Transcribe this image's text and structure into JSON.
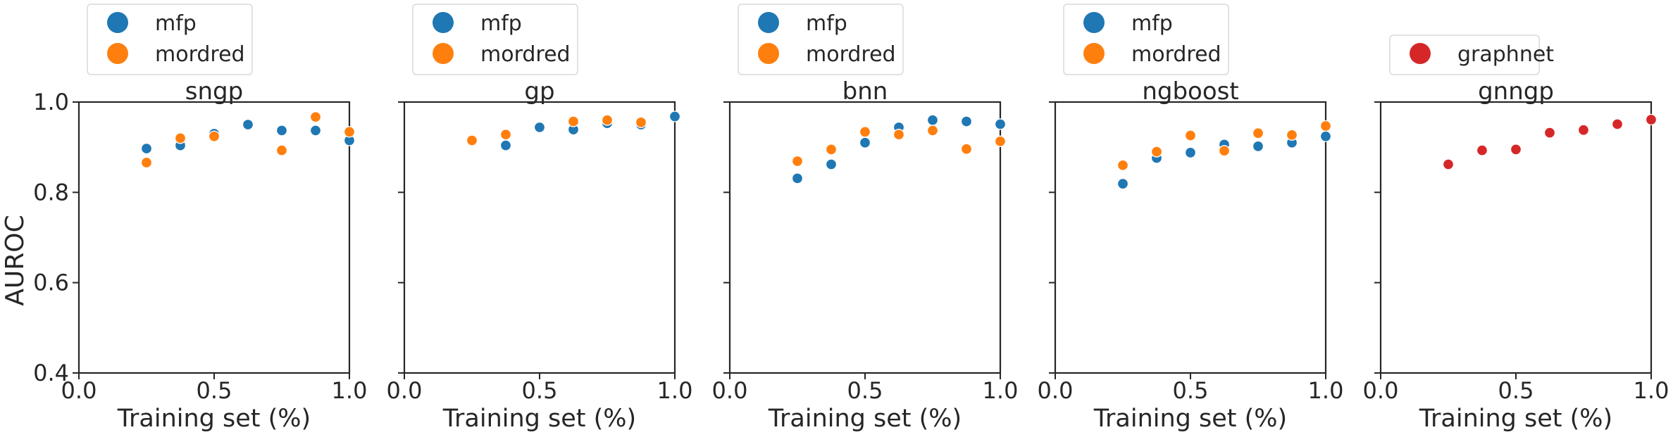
{
  "figure": {
    "ylabel": "AUROC"
  },
  "colors": {
    "mfp": "#1f77b4",
    "mordred": "#ff7f0e",
    "graphnet": "#d62728",
    "axis": "#262626"
  },
  "chart_data": [
    {
      "type": "scatter",
      "title": "sngp",
      "xlabel": "Training set (%)",
      "ylabel": "AUROC",
      "xlim": [
        0.0,
        1.0
      ],
      "ylim": [
        0.4,
        1.0
      ],
      "xticks": [
        "0.0",
        "0.5",
        "1.0"
      ],
      "yticks": [
        "0.4",
        "0.6",
        "0.8",
        "1.0"
      ],
      "grid": false,
      "legend": "above",
      "series": [
        {
          "name": "mfp",
          "color": "#1f77b4",
          "x": [
            0.25,
            0.375,
            0.5,
            0.625,
            0.75,
            0.875,
            1.0
          ],
          "y": [
            0.897,
            0.904,
            0.93,
            0.95,
            0.937,
            0.937,
            0.915
          ]
        },
        {
          "name": "mordred",
          "color": "#ff7f0e",
          "x": [
            0.25,
            0.375,
            0.5,
            0.75,
            0.875,
            1.0
          ],
          "y": [
            0.866,
            0.92,
            0.924,
            0.893,
            0.967,
            0.934
          ]
        }
      ]
    },
    {
      "type": "scatter",
      "title": "gp",
      "xlabel": "Training set (%)",
      "ylabel": "",
      "xlim": [
        0.0,
        1.0
      ],
      "ylim": [
        0.4,
        1.0
      ],
      "xticks": [
        "0.0",
        "0.5",
        "1.0"
      ],
      "yticks": [],
      "grid": false,
      "legend": "above",
      "series": [
        {
          "name": "mfp",
          "color": "#1f77b4",
          "x": [
            0.375,
            0.5,
            0.625,
            0.75,
            0.875,
            1.0
          ],
          "y": [
            0.904,
            0.944,
            0.939,
            0.953,
            0.95,
            0.968
          ]
        },
        {
          "name": "mordred",
          "color": "#ff7f0e",
          "x": [
            0.25,
            0.375,
            0.625,
            0.75,
            0.875
          ],
          "y": [
            0.915,
            0.928,
            0.957,
            0.96,
            0.955
          ]
        }
      ]
    },
    {
      "type": "scatter",
      "title": "bnn",
      "xlabel": "Training set (%)",
      "ylabel": "",
      "xlim": [
        0.0,
        1.0
      ],
      "ylim": [
        0.4,
        1.0
      ],
      "xticks": [
        "0.0",
        "0.5",
        "1.0"
      ],
      "yticks": [],
      "grid": false,
      "legend": "above",
      "series": [
        {
          "name": "mfp",
          "color": "#1f77b4",
          "x": [
            0.25,
            0.375,
            0.5,
            0.625,
            0.75,
            0.875,
            1.0
          ],
          "y": [
            0.831,
            0.862,
            0.91,
            0.944,
            0.96,
            0.957,
            0.951
          ]
        },
        {
          "name": "mordred",
          "color": "#ff7f0e",
          "x": [
            0.25,
            0.375,
            0.5,
            0.625,
            0.75,
            0.875,
            1.0
          ],
          "y": [
            0.869,
            0.895,
            0.934,
            0.928,
            0.937,
            0.896,
            0.913
          ]
        }
      ]
    },
    {
      "type": "scatter",
      "title": "ngboost",
      "xlabel": "Training set (%)",
      "ylabel": "",
      "xlim": [
        0.0,
        1.0
      ],
      "ylim": [
        0.4,
        1.0
      ],
      "xticks": [
        "0.0",
        "0.5",
        "1.0"
      ],
      "yticks": [],
      "grid": false,
      "legend": "above",
      "series": [
        {
          "name": "mfp",
          "color": "#1f77b4",
          "x": [
            0.25,
            0.375,
            0.5,
            0.625,
            0.75,
            0.875,
            1.0
          ],
          "y": [
            0.819,
            0.876,
            0.888,
            0.906,
            0.902,
            0.91,
            0.924
          ]
        },
        {
          "name": "mordred",
          "color": "#ff7f0e",
          "x": [
            0.25,
            0.375,
            0.5,
            0.625,
            0.75,
            0.875,
            1.0
          ],
          "y": [
            0.86,
            0.89,
            0.926,
            0.892,
            0.931,
            0.927,
            0.947
          ]
        }
      ]
    },
    {
      "type": "scatter",
      "title": "gnngp",
      "xlabel": "Training set (%)",
      "ylabel": "",
      "xlim": [
        0.0,
        1.0
      ],
      "ylim": [
        0.4,
        1.0
      ],
      "xticks": [
        "0.0",
        "0.5",
        "1.0"
      ],
      "yticks": [],
      "grid": false,
      "legend": "above",
      "series": [
        {
          "name": "graphnet",
          "color": "#d62728",
          "x": [
            0.25,
            0.375,
            0.5,
            0.625,
            0.75,
            0.875,
            1.0
          ],
          "y": [
            0.862,
            0.893,
            0.895,
            0.932,
            0.938,
            0.951,
            0.961
          ]
        }
      ]
    }
  ]
}
